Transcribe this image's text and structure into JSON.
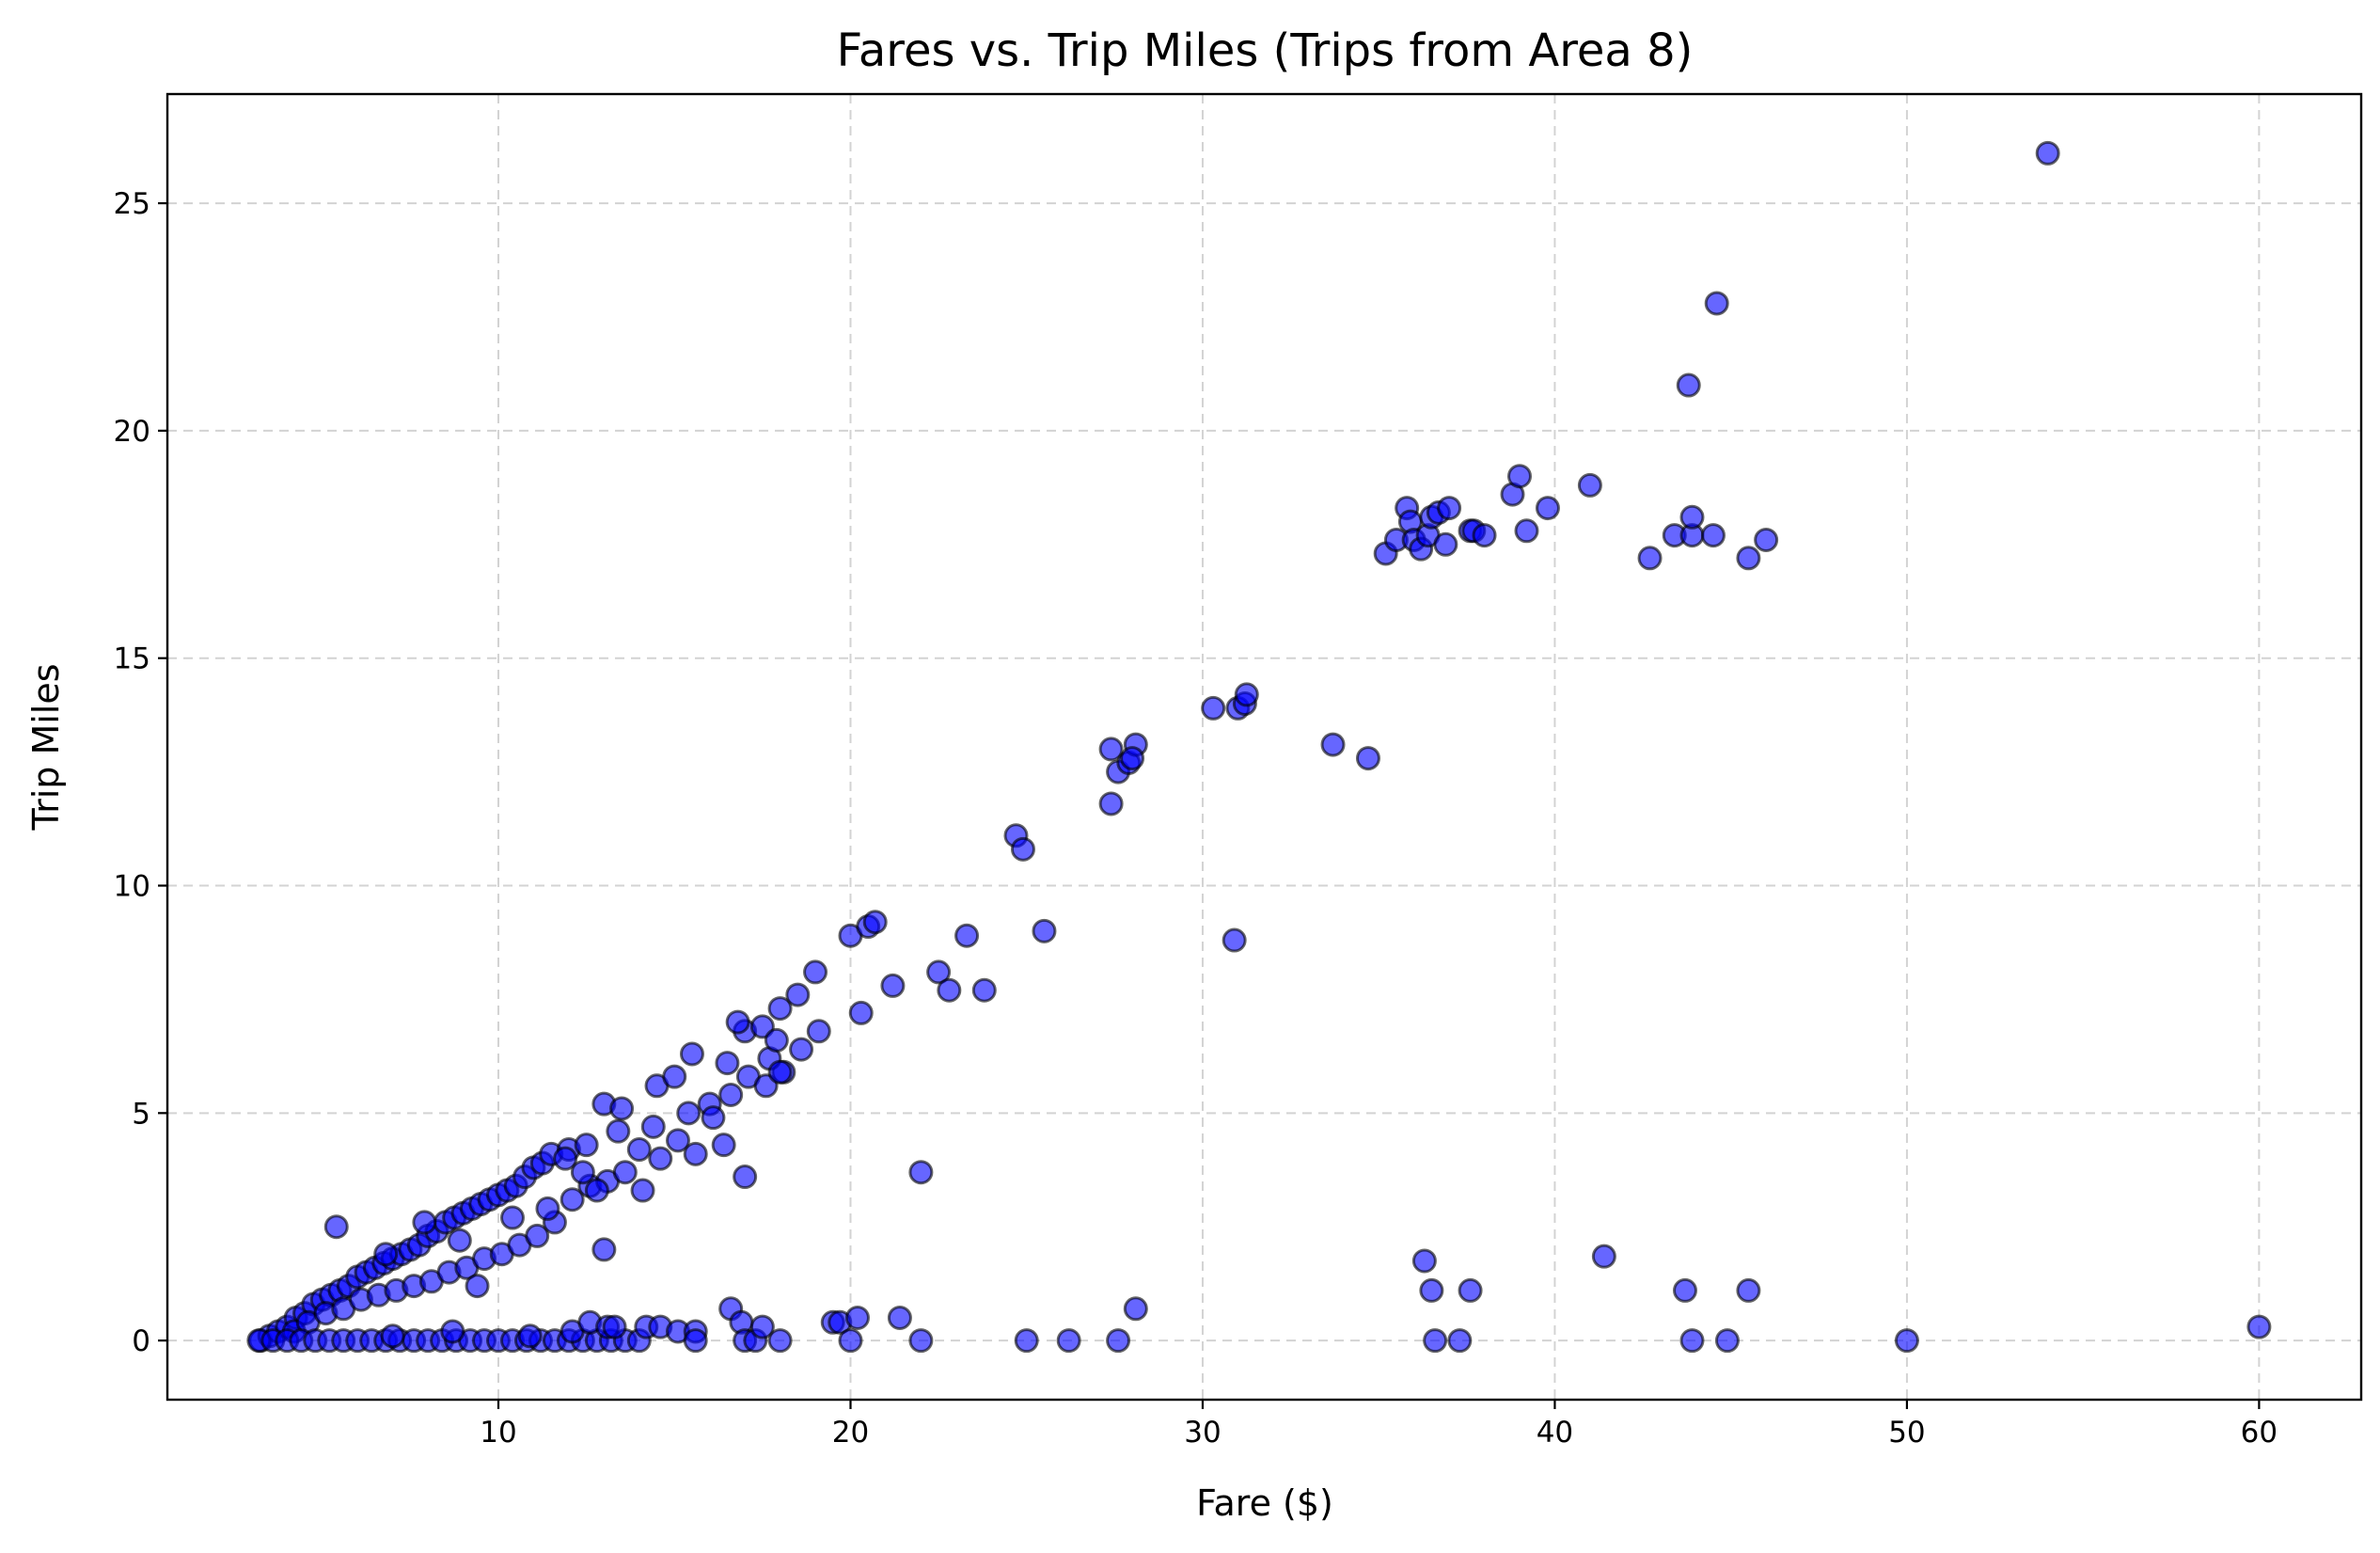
{
  "chart_data": {
    "type": "scatter",
    "title": "Fares vs. Trip Miles (Trips from Area 8)",
    "xlabel": "Fare ($)",
    "ylabel": "Trip Miles",
    "xlim": [
      0.6,
      62.9
    ],
    "ylim": [
      -1.3,
      27.4
    ],
    "xticks": [
      10,
      20,
      30,
      40,
      50,
      60
    ],
    "yticks": [
      0,
      5,
      10,
      15,
      20,
      25
    ],
    "grid": true,
    "marker_color": "#0000ff",
    "marker_edge_color": "#000000",
    "marker_alpha": 0.6,
    "points": [
      [
        3.25,
        0
      ],
      [
        3.5,
        0.1
      ],
      [
        3.75,
        0.2
      ],
      [
        4,
        0.3
      ],
      [
        4.25,
        0.5
      ],
      [
        4.5,
        0.6
      ],
      [
        4.75,
        0.8
      ],
      [
        5,
        0.9
      ],
      [
        5.25,
        1.0
      ],
      [
        5.5,
        1.1
      ],
      [
        5.75,
        1.2
      ],
      [
        6,
        1.4
      ],
      [
        6.25,
        1.5
      ],
      [
        6.5,
        1.6
      ],
      [
        6.75,
        1.7
      ],
      [
        7,
        1.8
      ],
      [
        7.25,
        1.9
      ],
      [
        7.5,
        2.0
      ],
      [
        7.75,
        2.1
      ],
      [
        8,
        2.3
      ],
      [
        8.25,
        2.4
      ],
      [
        8.5,
        2.6
      ],
      [
        8.75,
        2.7
      ],
      [
        9,
        2.8
      ],
      [
        9.25,
        2.9
      ],
      [
        9.5,
        3.0
      ],
      [
        9.75,
        3.1
      ],
      [
        10,
        3.2
      ],
      [
        10.25,
        3.3
      ],
      [
        10.5,
        3.4
      ],
      [
        10.75,
        3.6
      ],
      [
        11,
        3.8
      ],
      [
        11.25,
        3.9
      ],
      [
        11.5,
        4.1
      ],
      [
        12,
        4.2
      ],
      [
        12.5,
        4.3
      ],
      [
        13,
        5.2
      ],
      [
        13.5,
        5.1
      ],
      [
        14,
        4.2
      ],
      [
        14.5,
        5.6
      ],
      [
        15,
        5.8
      ],
      [
        15.5,
        6.3
      ],
      [
        16,
        5.2
      ],
      [
        16.5,
        6.1
      ],
      [
        17,
        6.8
      ],
      [
        17.5,
        6.9
      ],
      [
        18,
        7.3
      ],
      [
        18.5,
        7.6
      ],
      [
        19,
        8.1
      ],
      [
        20,
        8.9
      ],
      [
        20.5,
        9.1
      ],
      [
        20.7,
        9.2
      ],
      [
        4.2,
        0.2
      ],
      [
        4.6,
        0.4
      ],
      [
        5.1,
        0.6
      ],
      [
        5.6,
        0.7
      ],
      [
        6.1,
        0.9
      ],
      [
        6.6,
        1.0
      ],
      [
        7.1,
        1.1
      ],
      [
        7.6,
        1.2
      ],
      [
        8.1,
        1.3
      ],
      [
        8.6,
        1.5
      ],
      [
        9.1,
        1.6
      ],
      [
        9.6,
        1.8
      ],
      [
        10.1,
        1.9
      ],
      [
        10.6,
        2.1
      ],
      [
        11.1,
        2.3
      ],
      [
        11.6,
        2.6
      ],
      [
        12.1,
        3.1
      ],
      [
        12.6,
        3.4
      ],
      [
        13.1,
        3.5
      ],
      [
        13.6,
        3.7
      ],
      [
        14.1,
        3.3
      ],
      [
        14.6,
        4.0
      ],
      [
        15.1,
        4.4
      ],
      [
        15.6,
        4.1
      ],
      [
        16.1,
        4.9
      ],
      [
        16.6,
        5.4
      ],
      [
        17.1,
        5.8
      ],
      [
        17.6,
        5.6
      ],
      [
        18.1,
        5.9
      ],
      [
        18.6,
        6.4
      ],
      [
        19.1,
        6.8
      ],
      [
        5.4,
        2.5
      ],
      [
        6.8,
        1.9
      ],
      [
        7.9,
        2.6
      ],
      [
        8.9,
        2.2
      ],
      [
        9.4,
        1.2
      ],
      [
        10.4,
        2.7
      ],
      [
        11.4,
        2.9
      ],
      [
        11.9,
        4.0
      ],
      [
        12.4,
        3.7
      ],
      [
        13.4,
        4.6
      ],
      [
        14.4,
        4.7
      ],
      [
        15.4,
        5.0
      ],
      [
        16.4,
        4.3
      ],
      [
        17.0,
        3.6
      ],
      [
        17.7,
        6.2
      ],
      [
        13.0,
        2.0
      ],
      [
        12.8,
        3.3
      ],
      [
        16.8,
        7.0
      ],
      [
        17.9,
        6.6
      ],
      [
        18.0,
        5.9
      ],
      [
        21.2,
        7.8
      ],
      [
        22.5,
        8.1
      ],
      [
        22.8,
        7.7
      ],
      [
        23.3,
        8.9
      ],
      [
        23.8,
        7.7
      ],
      [
        25.5,
        9.0
      ],
      [
        20.3,
        7.2
      ],
      [
        24.7,
        11.1
      ],
      [
        24.9,
        10.8
      ],
      [
        27.4,
        13.0
      ],
      [
        27.6,
        12.5
      ],
      [
        27.9,
        12.7
      ],
      [
        28.1,
        13.1
      ],
      [
        27.4,
        11.8
      ],
      [
        28.0,
        12.8
      ],
      [
        30.3,
        13.9
      ],
      [
        31.0,
        13.9
      ],
      [
        31.2,
        14.0
      ],
      [
        31.25,
        14.2
      ],
      [
        33.7,
        13.1
      ],
      [
        34.7,
        12.8
      ],
      [
        30.9,
        8.8
      ],
      [
        22.0,
        3.7
      ],
      [
        35.2,
        17.3
      ],
      [
        35.5,
        17.6
      ],
      [
        35.8,
        18.3
      ],
      [
        35.9,
        18.0
      ],
      [
        36.0,
        17.6
      ],
      [
        36.2,
        17.4
      ],
      [
        36.4,
        17.7
      ],
      [
        36.5,
        18.1
      ],
      [
        36.7,
        18.2
      ],
      [
        37.0,
        18.3
      ],
      [
        36.9,
        17.5
      ],
      [
        37.6,
        17.8
      ],
      [
        37.7,
        17.8
      ],
      [
        38.0,
        17.7
      ],
      [
        38.8,
        18.6
      ],
      [
        39.0,
        19.0
      ],
      [
        39.2,
        17.8
      ],
      [
        39.8,
        18.3
      ],
      [
        41.0,
        18.8
      ],
      [
        42.7,
        17.2
      ],
      [
        43.4,
        17.7
      ],
      [
        43.9,
        17.7
      ],
      [
        43.9,
        18.1
      ],
      [
        44.5,
        17.7
      ],
      [
        45.5,
        17.2
      ],
      [
        46.0,
        17.6
      ],
      [
        43.8,
        21.0
      ],
      [
        44.6,
        22.8
      ],
      [
        54.0,
        26.1
      ],
      [
        3.2,
        0
      ],
      [
        3.6,
        0
      ],
      [
        4.0,
        0
      ],
      [
        4.4,
        0
      ],
      [
        4.8,
        0
      ],
      [
        5.2,
        0
      ],
      [
        5.6,
        0
      ],
      [
        6.0,
        0
      ],
      [
        6.4,
        0
      ],
      [
        6.8,
        0
      ],
      [
        7.2,
        0
      ],
      [
        7.6,
        0
      ],
      [
        8.0,
        0
      ],
      [
        8.4,
        0
      ],
      [
        8.8,
        0
      ],
      [
        9.2,
        0
      ],
      [
        9.6,
        0
      ],
      [
        10.0,
        0
      ],
      [
        10.4,
        0
      ],
      [
        10.8,
        0
      ],
      [
        11.2,
        0
      ],
      [
        11.6,
        0
      ],
      [
        12.0,
        0
      ],
      [
        12.4,
        0
      ],
      [
        12.8,
        0
      ],
      [
        13.2,
        0
      ],
      [
        13.6,
        0
      ],
      [
        14.0,
        0
      ],
      [
        7.0,
        0.1
      ],
      [
        8.7,
        0.2
      ],
      [
        10.9,
        0.1
      ],
      [
        12.1,
        0.2
      ],
      [
        12.6,
        0.4
      ],
      [
        13.1,
        0.3
      ],
      [
        13.3,
        0.3
      ],
      [
        14.2,
        0.3
      ],
      [
        14.6,
        0.3
      ],
      [
        15.1,
        0.2
      ],
      [
        15.6,
        0.2
      ],
      [
        15.6,
        0
      ],
      [
        16.6,
        0.7
      ],
      [
        16.9,
        0.4
      ],
      [
        17.0,
        0
      ],
      [
        17.3,
        0
      ],
      [
        17.5,
        0.3
      ],
      [
        18.0,
        0
      ],
      [
        19.5,
        0.4
      ],
      [
        19.7,
        0.4
      ],
      [
        20.0,
        0
      ],
      [
        20.2,
        0.5
      ],
      [
        21.4,
        0.5
      ],
      [
        22.0,
        0
      ],
      [
        25.0,
        0
      ],
      [
        26.2,
        0
      ],
      [
        27.6,
        0
      ],
      [
        28.1,
        0.7
      ],
      [
        36.3,
        1.75
      ],
      [
        36.5,
        1.1
      ],
      [
        36.6,
        0
      ],
      [
        37.3,
        0
      ],
      [
        37.6,
        1.1
      ],
      [
        41.4,
        1.85
      ],
      [
        43.7,
        1.1
      ],
      [
        43.9,
        0
      ],
      [
        44.9,
        0
      ],
      [
        45.5,
        1.1
      ],
      [
        50.0,
        0
      ],
      [
        60.0,
        0.3
      ]
    ]
  }
}
